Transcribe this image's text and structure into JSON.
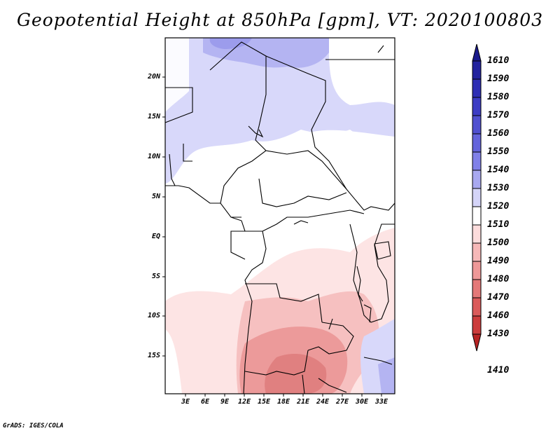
{
  "title": "Geopotential Height at 850hPa [gpm], VT: 2020100803",
  "credit": "GrADS: IGES/COLA",
  "axes": {
    "lat_labels": [
      "20N",
      "15N",
      "10N",
      "5N",
      "EQ",
      "5S",
      "10S",
      "15S"
    ],
    "lon_labels": [
      "3E",
      "6E",
      "9E",
      "12E",
      "15E",
      "18E",
      "21E",
      "24E",
      "27E",
      "30E",
      "33E"
    ]
  },
  "colorbar": {
    "labels": [
      "1610",
      "1590",
      "1580",
      "1570",
      "1560",
      "1550",
      "1540",
      "1530",
      "1520",
      "1510",
      "1500",
      "1490",
      "1480",
      "1470",
      "1460",
      "1430",
      "1410"
    ],
    "colors": [
      "#1a1a8c",
      "#22229e",
      "#2e2eb4",
      "#3c3cc4",
      "#5050d0",
      "#6464dc",
      "#8080e8",
      "#a8a8f0",
      "#d4d4f8",
      "#ffffff",
      "#fcdcdc",
      "#f6b8b8",
      "#ee9898",
      "#e47878",
      "#da5a5a",
      "#cc3c3c",
      "#b82424"
    ]
  },
  "colors": {
    "blue_light": "#d8d8fa",
    "blue_mid": "#b4b4f2",
    "blue_dark": "#9c9cec",
    "pink_light": "#fde4e4",
    "pink_mid": "#f6c0c0",
    "pink_dark": "#ec9a9a",
    "pink_darker": "#e08080"
  }
}
